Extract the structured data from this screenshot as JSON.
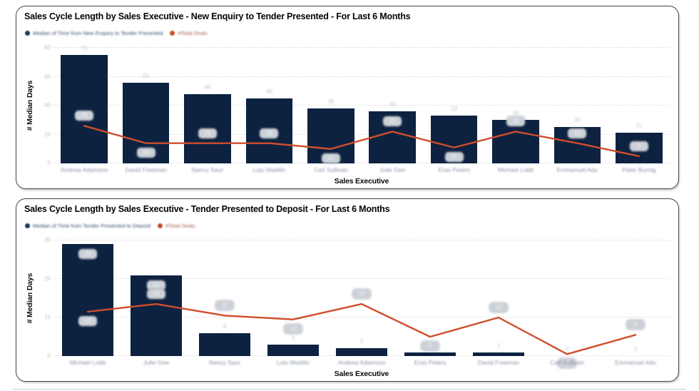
{
  "colors": {
    "bar": "#0c2240",
    "line": "#cf4e2c",
    "card_border": "#454545",
    "pill_bg": "#ccd1d8",
    "legend_median_dot": "#1f3864",
    "legend_deals_dot": "#cf4e2c"
  },
  "chart_data": [
    {
      "type": "bar+line",
      "title": "Sales Cycle Length by Sales Executive - New Enquiry to Tender Presented - For Last 6 Months",
      "xlabel": "Sales Executive",
      "ylabel": "# Median Days",
      "ylim": [
        0,
        80
      ],
      "yticks": [
        0,
        20,
        40,
        60,
        80
      ],
      "grid": "dotted horizontal",
      "legend_position": "top-left",
      "legend": [
        {
          "label": "Median of Time from New Enquiry to Tender Presented",
          "color": "#1f3864",
          "text_color": "#3e4e76"
        },
        {
          "label": "#Total Deals",
          "color": "#cf4e2c",
          "text_color": "#a8604a"
        }
      ],
      "categories": [
        "Andrew Adamson",
        "David Freeman",
        "Nancy Saur",
        "Lulu Wadilin",
        "Carl Sullivan",
        "Julie Gee",
        "Eras Peters",
        "Michael Lobb",
        "Emmanuel Adu",
        "Peter Burnig"
      ],
      "bars": {
        "name": "Median of Time from New Enquiry to Tender Presented",
        "values": [
          75,
          56,
          48,
          45,
          38,
          36,
          33,
          30,
          25,
          21
        ],
        "label_inside": [
          false,
          false,
          false,
          false,
          false,
          false,
          false,
          false,
          false,
          false
        ]
      },
      "line": {
        "name": "#Total Deals",
        "values": [
          26,
          14,
          14,
          14,
          10,
          22,
          11,
          22,
          14,
          5
        ],
        "labels": [
          26,
          14,
          14,
          14,
          10,
          22,
          11,
          22,
          14,
          5
        ],
        "label_up": [
          true,
          false,
          true,
          true,
          false,
          true,
          false,
          true,
          true,
          true
        ]
      }
    },
    {
      "type": "bar+line",
      "title": "Sales Cycle Length by Sales Executive - Tender Presented to Deposit - For Last 6 Months",
      "xlabel": "Sales Executive",
      "ylabel": "# Median Days",
      "ylim": [
        0,
        30
      ],
      "yticks": [
        0,
        10,
        20,
        30
      ],
      "grid": "dotted horizontal",
      "legend_position": "top-left",
      "legend": [
        {
          "label": "Median of Time from Tender Presented to Deposit",
          "color": "#1f3864",
          "text_color": "#3e4e76"
        },
        {
          "label": "#Total Deals",
          "color": "#cf4e2c",
          "text_color": "#a8604a"
        }
      ],
      "categories": [
        "Michael Lobb",
        "Julie Gee",
        "Nancy Saur",
        "Lulu Wadilin",
        "Andrew Adamson",
        "Eras Peters",
        "David Freeman",
        "Carl Sullivan",
        "Emmanuel Adu"
      ],
      "bars": {
        "name": "Median of Time from Tender Presented to Deposit",
        "values": [
          29,
          21,
          6,
          3,
          2,
          1,
          1,
          0,
          0
        ],
        "label_inside": [
          true,
          true,
          false,
          false,
          false,
          false,
          false,
          false,
          false
        ]
      },
      "line": {
        "name": "#Total Deals",
        "values": [
          11.5,
          13.5,
          10.5,
          9.5,
          13.5,
          5,
          10,
          0.5,
          5.5
        ],
        "labels": [
          12,
          14,
          11,
          10,
          14,
          5,
          10,
          1,
          6
        ],
        "label_up": [
          false,
          true,
          true,
          false,
          true,
          false,
          true,
          false,
          true
        ]
      }
    }
  ]
}
